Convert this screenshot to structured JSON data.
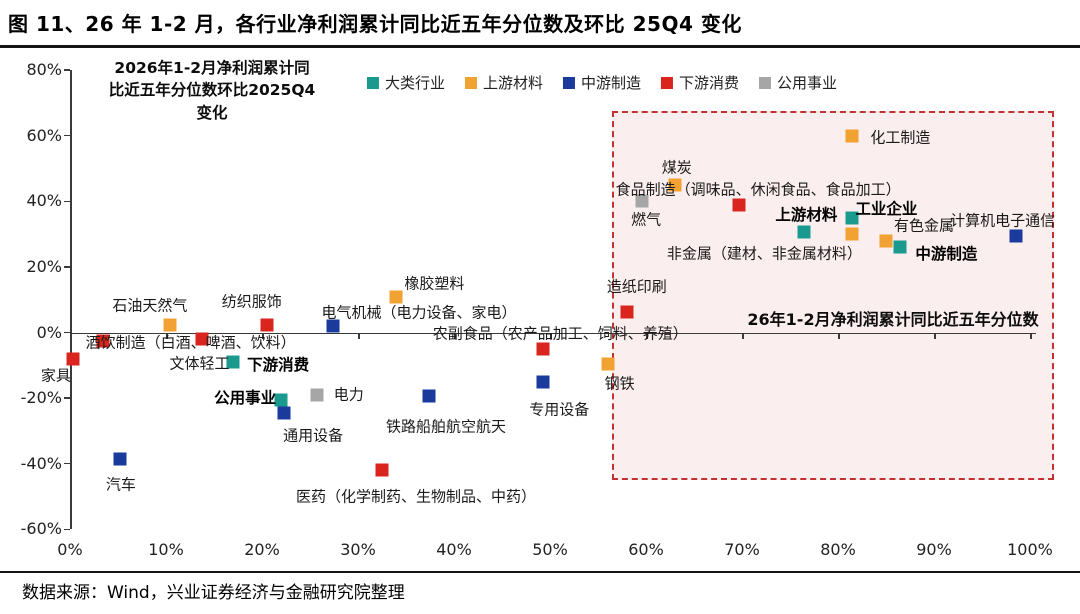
{
  "page": {
    "title": "图 11、26 年 1-2 月，各行业净利润累计同比近五年分位数及环比 25Q4 变化",
    "source": "数据来源：Wind，兴业证券经济与金融研究院整理"
  },
  "chart_data": {
    "type": "scatter",
    "x_axis": {
      "label": "26年1-2月净利润累计同比近五年分位数",
      "min": 0,
      "max": 100,
      "step": 10,
      "ticks": [
        "0%",
        "10%",
        "20%",
        "30%",
        "40%",
        "50%",
        "60%",
        "70%",
        "80%",
        "90%",
        "100%"
      ]
    },
    "y_axis": {
      "label": "2026年1-2月净利润累计同比近五年分位数环比2025Q4变化",
      "label_lines": [
        "2026年1-2月净利润累计同",
        "比近五年分位数环比2025Q4",
        "变化"
      ],
      "min": -60,
      "max": 80,
      "step": 20,
      "ticks": [
        "80%",
        "60%",
        "40%",
        "20%",
        "0%",
        "-20%",
        "-40%",
        "-60%"
      ]
    },
    "legend": [
      {
        "name": "大类行业",
        "color": "#1A998F"
      },
      {
        "name": "上游材料",
        "color": "#F2A232"
      },
      {
        "name": "中游制造",
        "color": "#1A3A9C"
      },
      {
        "name": "下游消费",
        "color": "#D9251D"
      },
      {
        "name": "公用事业",
        "color": "#A6A6A6"
      }
    ],
    "annotation": "26年1-2月净利润累计同比近五年分位数",
    "highlight_box": {
      "x_min": 56.5,
      "x_max": 102.5,
      "y_min": -45,
      "y_max": 67.5,
      "border_color": "#C23231",
      "fill_color": "#FBEEEE"
    },
    "series": [
      {
        "name": "大类行业",
        "color": "#1A998F",
        "points": [
          {
            "label": "下游消费",
            "x": 17,
            "y": -9,
            "bold": true,
            "dx": 45,
            "dy": 2
          },
          {
            "label": "公用事业",
            "x": 22,
            "y": -20.5,
            "bold": true,
            "dx": -36,
            "dy": -3
          },
          {
            "label": "上游材料",
            "x": 76.5,
            "y": 30.5,
            "bold": true,
            "dx": 2,
            "dy": -18
          },
          {
            "label": "工业企业",
            "x": 81.5,
            "y": 35,
            "bold": true,
            "dx": 34,
            "dy": -10
          },
          {
            "label": "中游制造",
            "x": 86.5,
            "y": 26,
            "bold": true,
            "dx": 46,
            "dy": 6
          }
        ]
      },
      {
        "name": "上游材料",
        "color": "#F2A232",
        "points": [
          {
            "label": "石油天然气",
            "x": 10.4,
            "y": 2.3,
            "dx": -20,
            "dy": -20
          },
          {
            "label": "橡胶塑料",
            "x": 34,
            "y": 10.8,
            "dx": 38,
            "dy": -14
          },
          {
            "label": "钢铁",
            "x": 56,
            "y": -9.5,
            "dx": 12,
            "dy": 19
          },
          {
            "label": "煤炭",
            "x": 63,
            "y": 45,
            "dx": 2,
            "dy": -18
          },
          {
            "label": "化工制造",
            "x": 81.5,
            "y": 60,
            "dx": 48,
            "dy": 1
          },
          {
            "label": "非金属（建材、非金属材料）",
            "x": 81.5,
            "y": 30,
            "dx": -88,
            "dy": 19
          },
          {
            "label": "有色金属",
            "x": 85,
            "y": 28,
            "dx": 38,
            "dy": -16
          }
        ]
      },
      {
        "name": "中游制造",
        "color": "#1A3A9C",
        "points": [
          {
            "label": "汽车",
            "x": 5.2,
            "y": -38.5,
            "dx": 1,
            "dy": 25
          },
          {
            "label": "电气机械（电力设备、家电）",
            "x": 27.4,
            "y": 2,
            "dx": 86,
            "dy": -14
          },
          {
            "label": "通用设备",
            "x": 22.3,
            "y": -24.5,
            "dx": 29,
            "dy": 22
          },
          {
            "label": "铁路船舶航空航天",
            "x": 37.4,
            "y": -19.5,
            "dx": 17,
            "dy": 30
          },
          {
            "label": "专用设备",
            "x": 49.3,
            "y": -15,
            "dx": 16,
            "dy": 27
          },
          {
            "label": "计算机电子通信",
            "x": 98.5,
            "y": 29.5,
            "dx": -13,
            "dy": -16
          }
        ]
      },
      {
        "name": "下游消费",
        "color": "#D9251D",
        "points": [
          {
            "label": "家具",
            "x": 0.3,
            "y": -8,
            "dx": -17,
            "dy": 16
          },
          {
            "label": "酒饮制造（白酒、啤酒、饮料）",
            "x": 3.4,
            "y": -2.5,
            "dx": 88,
            "dy": 1
          },
          {
            "label": "文体轻工",
            "x": 13.7,
            "y": -2,
            "dx": -2,
            "dy": 24
          },
          {
            "label": "纺织服饰",
            "x": 20.5,
            "y": 2.2,
            "dx": -15,
            "dy": -24
          },
          {
            "label": "医药（化学制药、生物制品、中药）",
            "x": 32.5,
            "y": -42,
            "dx": 34,
            "dy": 26
          },
          {
            "label": "农副食品（农产品加工、饲料、养殖）",
            "x": 49.3,
            "y": -5,
            "dx": 17,
            "dy": -16
          },
          {
            "label": "造纸印刷",
            "x": 58,
            "y": 6.3,
            "dx": 10,
            "dy": -26
          },
          {
            "label": "食品制造（调味品、休闲食品、食品加工）",
            "x": 69.7,
            "y": 39,
            "dx": 19,
            "dy": -16
          }
        ]
      },
      {
        "name": "公用事业",
        "color": "#A6A6A6",
        "points": [
          {
            "label": "电力",
            "x": 25.7,
            "y": -19,
            "dx": 32,
            "dy": -1
          },
          {
            "label": "燃气",
            "x": 59.6,
            "y": 40,
            "dx": 4,
            "dy": 18
          }
        ]
      }
    ]
  }
}
